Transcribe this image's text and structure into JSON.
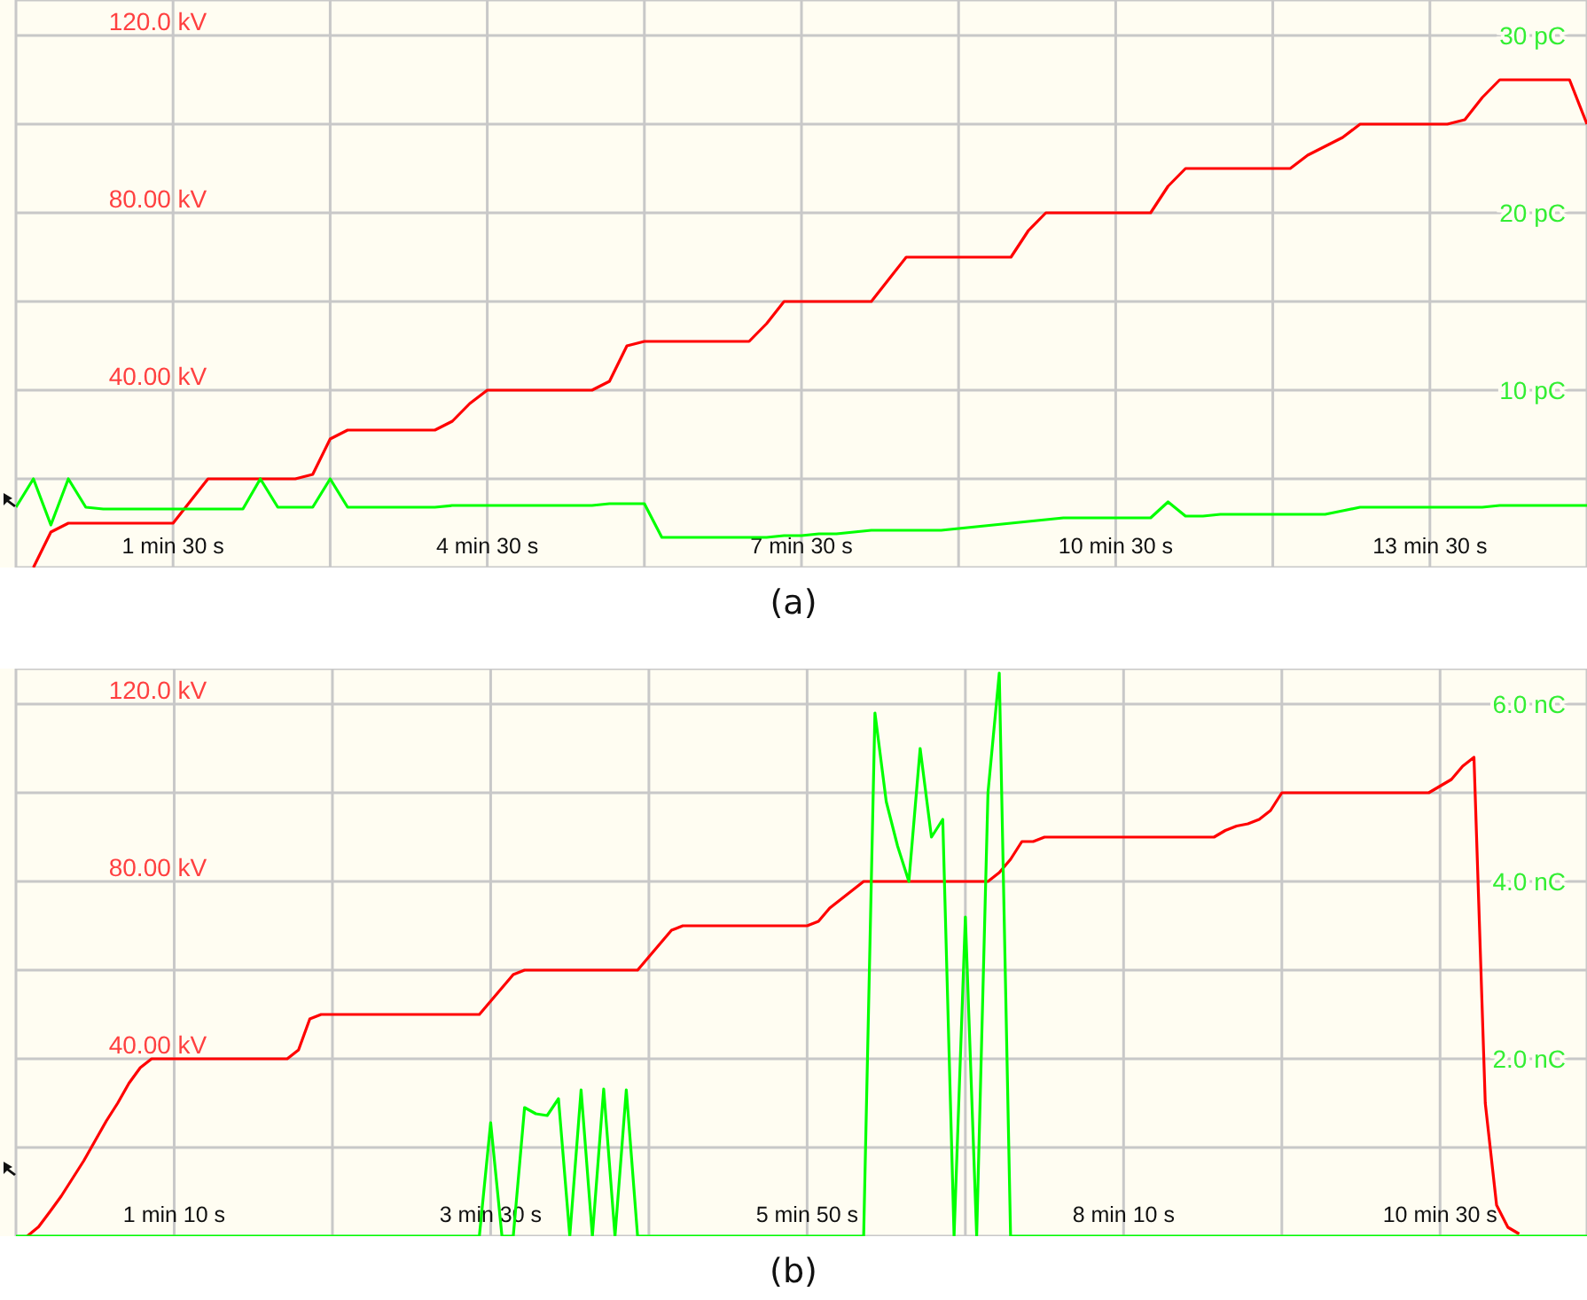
{
  "chart_data": [
    {
      "type": "line",
      "title": "(a)",
      "grid": true,
      "ylim": [
        0,
        128
      ],
      "y2lim": [
        0,
        32
      ],
      "categories": [
        null,
        null,
        null,
        null,
        null,
        null,
        null,
        null,
        null,
        "1 min 30 s",
        null,
        null,
        null,
        null,
        null,
        null,
        null,
        null,
        null,
        null,
        null,
        null,
        null,
        null,
        null,
        null,
        null,
        "4 min 30 s",
        null,
        null,
        null,
        null,
        null,
        null,
        null,
        null,
        null,
        null,
        null,
        null,
        null,
        null,
        null,
        null,
        null,
        "7 min 30 s",
        null,
        null,
        null,
        null,
        null,
        null,
        null,
        null,
        null,
        null,
        null,
        null,
        null,
        null,
        null,
        null,
        null,
        "10 min 30 s",
        null,
        null,
        null,
        null,
        null,
        null,
        null,
        null,
        null,
        null,
        null,
        null,
        null,
        null,
        null,
        null,
        null,
        "13 min 30 s",
        null,
        null,
        null,
        null,
        null,
        null,
        null,
        null,
        null
      ],
      "yticks": [
        {
          "value": 20,
          "label": null
        },
        {
          "value": 40,
          "label": "40.00 kV"
        },
        {
          "value": 60,
          "label": null
        },
        {
          "value": 80,
          "label": "80.00 kV"
        },
        {
          "value": 100,
          "label": null
        },
        {
          "value": 120,
          "label": "120.0 kV"
        }
      ],
      "y2ticks": [
        {
          "value": 10,
          "label": "10 pC"
        },
        {
          "value": 20,
          "label": "20 pC"
        },
        {
          "value": 30,
          "label": "30 pC"
        }
      ],
      "series": [
        {
          "color": "#ff0000",
          "values": [
            null,
            0,
            8,
            10,
            10,
            10,
            10,
            10,
            10,
            10,
            15,
            20,
            20,
            20,
            20,
            20,
            20,
            21,
            29,
            31,
            31,
            31,
            31,
            31,
            31,
            33,
            37,
            40,
            40,
            40,
            40,
            40,
            40,
            40,
            42,
            50,
            51,
            51,
            51,
            51,
            51,
            51,
            51,
            55,
            60,
            60,
            60,
            60,
            60,
            60,
            65,
            70,
            70,
            70,
            70,
            70,
            70,
            70,
            76,
            80,
            80,
            80,
            80,
            80,
            80,
            80,
            86,
            90,
            90,
            90,
            90,
            90,
            90,
            90,
            93,
            95,
            97,
            100,
            100,
            100,
            100,
            100,
            100,
            101,
            106,
            110,
            110,
            110,
            110,
            110,
            100
          ]
        },
        {
          "color": "#00ff00",
          "axis": "y2",
          "values": [
            3.4,
            5.0,
            2.4,
            5.0,
            3.4,
            3.3,
            3.3,
            3.3,
            3.3,
            3.3,
            3.3,
            3.3,
            3.3,
            3.3,
            5.0,
            3.4,
            3.4,
            3.4,
            5.0,
            3.4,
            3.4,
            3.4,
            3.4,
            3.4,
            3.4,
            3.5,
            3.5,
            3.5,
            3.5,
            3.5,
            3.5,
            3.5,
            3.5,
            3.5,
            3.6,
            3.6,
            3.6,
            1.7,
            1.7,
            1.7,
            1.7,
            1.7,
            1.7,
            1.7,
            1.8,
            1.8,
            1.9,
            1.9,
            2.0,
            2.1,
            2.1,
            2.1,
            2.1,
            2.1,
            2.2,
            2.3,
            2.4,
            2.5,
            2.6,
            2.7,
            2.8,
            2.8,
            2.8,
            2.8,
            2.8,
            2.8,
            3.7,
            2.9,
            2.9,
            3.0,
            3.0,
            3.0,
            3.0,
            3.0,
            3.0,
            3.0,
            3.2,
            3.4,
            3.4,
            3.4,
            3.4,
            3.4,
            3.4,
            3.4,
            3.4,
            3.5,
            3.5,
            3.5,
            3.5,
            3.5,
            3.5
          ]
        }
      ]
    },
    {
      "type": "line",
      "title": "(b)",
      "grid": true,
      "ylim": [
        0,
        128
      ],
      "y2lim": [
        0,
        6.4
      ],
      "categories": [
        null,
        null,
        null,
        null,
        null,
        null,
        null,
        null,
        null,
        null,
        null,
        null,
        null,
        null,
        "1 min 10 s",
        null,
        null,
        null,
        null,
        null,
        null,
        null,
        null,
        null,
        null,
        null,
        null,
        null,
        null,
        null,
        null,
        null,
        null,
        null,
        null,
        null,
        null,
        null,
        null,
        null,
        null,
        null,
        "3 min 30 s",
        null,
        null,
        null,
        null,
        null,
        null,
        null,
        null,
        null,
        null,
        null,
        null,
        null,
        null,
        null,
        null,
        null,
        null,
        null,
        null,
        null,
        null,
        null,
        null,
        null,
        null,
        null,
        "5 min 50 s",
        null,
        null,
        null,
        null,
        null,
        null,
        null,
        null,
        null,
        null,
        null,
        null,
        null,
        null,
        null,
        null,
        null,
        null,
        null,
        null,
        null,
        null,
        null,
        null,
        null,
        null,
        null,
        "8 min 10 s",
        null,
        null,
        null,
        null,
        null,
        null,
        null,
        null,
        null,
        null,
        null,
        null,
        null,
        null,
        null,
        null,
        null,
        null,
        null,
        null,
        null,
        null,
        null,
        null,
        null,
        null,
        null,
        "10 min 30 s",
        null,
        null,
        null,
        null,
        null,
        null,
        null,
        null,
        null,
        null,
        null,
        null,
        null
      ],
      "yticks": [
        {
          "value": 20,
          "label": null
        },
        {
          "value": 40,
          "label": "40.00 kV"
        },
        {
          "value": 60,
          "label": null
        },
        {
          "value": 80,
          "label": "80.00 kV"
        },
        {
          "value": 100,
          "label": null
        },
        {
          "value": 120,
          "label": "120.0 kV"
        }
      ],
      "y2ticks": [
        {
          "value": 2,
          "label": "2.0 nC"
        },
        {
          "value": 4,
          "label": "4.0 nC"
        },
        {
          "value": 6,
          "label": "6.0 nC"
        }
      ],
      "series": [
        {
          "color": "#ff0000",
          "values": [
            null,
            0,
            2.1,
            5.5,
            9,
            13,
            17,
            21.5,
            26,
            30,
            34.5,
            38,
            40,
            40,
            40,
            40,
            40,
            40,
            40,
            40,
            40,
            40,
            40,
            40,
            40,
            42,
            49,
            50,
            50,
            50,
            50,
            50,
            50,
            50,
            50,
            50,
            50,
            50,
            50,
            50,
            50,
            50,
            53,
            56,
            59,
            60,
            60,
            60,
            60,
            60,
            60,
            60,
            60,
            60,
            60,
            60,
            63,
            66,
            69,
            70,
            70,
            70,
            70,
            70,
            70,
            70,
            70,
            70,
            70,
            70,
            70,
            71,
            74,
            76,
            78,
            80,
            80,
            80,
            80,
            80,
            80,
            80,
            80,
            80,
            80,
            80,
            80,
            82,
            85,
            89,
            89,
            90,
            90,
            90,
            90,
            90,
            90,
            90,
            90,
            90,
            90,
            90,
            90,
            90,
            90,
            90,
            90,
            91.5,
            92.5,
            93,
            94,
            96,
            100,
            100,
            100,
            100,
            100,
            100,
            100,
            100,
            100,
            100,
            100,
            100,
            100,
            100,
            101.5,
            103,
            106,
            108,
            30,
            7,
            2,
            0.5,
            null,
            null,
            null,
            null,
            null,
            null
          ]
        },
        {
          "color": "#00ff00",
          "axis": "y2",
          "values": [
            0,
            0,
            0,
            0,
            0,
            0,
            0,
            0,
            0,
            0,
            0,
            0,
            0,
            0,
            0,
            0,
            0,
            0,
            0,
            0,
            0,
            0,
            0,
            0,
            0,
            0,
            0,
            0,
            0,
            0,
            0,
            0,
            0,
            0,
            0,
            0,
            0,
            0,
            0,
            0,
            0,
            0,
            1.28,
            0,
            0,
            1.45,
            1.38,
            1.36,
            1.55,
            0,
            1.65,
            0,
            1.66,
            0,
            1.65,
            0,
            0,
            0,
            0,
            0,
            0,
            0,
            0,
            0,
            0,
            0,
            0,
            0,
            0,
            0,
            0,
            0,
            0,
            0,
            0,
            0,
            5.9,
            4.9,
            4.4,
            4.0,
            5.5,
            4.5,
            4.7,
            0,
            3.6,
            0,
            5.0,
            6.35,
            0,
            0,
            0,
            0,
            0,
            0,
            0,
            0,
            0,
            0,
            0,
            0,
            0,
            0,
            0,
            0,
            0,
            0,
            0,
            0,
            0,
            0,
            0,
            0,
            0,
            0,
            0,
            0,
            0,
            0,
            0,
            0,
            0,
            0,
            0,
            0,
            0,
            0,
            0,
            0,
            0,
            0,
            0,
            0,
            0,
            0,
            0,
            0,
            0,
            0,
            0,
            0
          ]
        }
      ]
    }
  ]
}
